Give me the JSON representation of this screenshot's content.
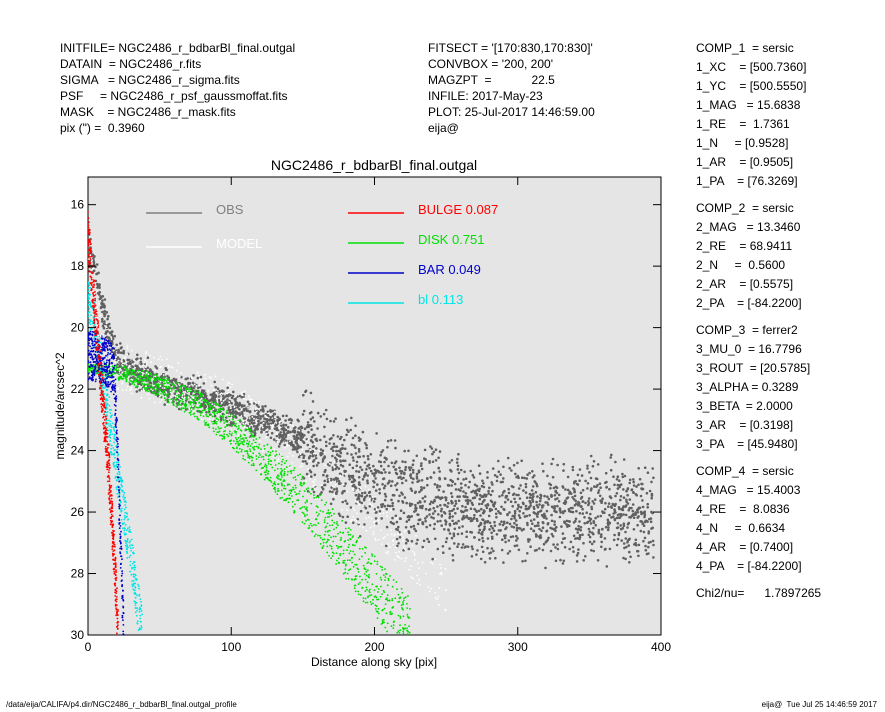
{
  "header_left": [
    "INITFILE= NGC2486_r_bdbarBl_final.outgal",
    "DATAIN  = NGC2486_r.fits",
    "SIGMA   = NGC2486_r_sigma.fits",
    "PSF     = NGC2486_r_psf_gaussmoffat.fits",
    "MASK    = NGC2486_r_mask.fits",
    "pix (\") =  0.3960"
  ],
  "header_mid": [
    "FITSECT = '[170:830,170:830]'",
    "CONVBOX = '200, 200'",
    "MAGZPT  =            22.5",
    "INFILE: 2017-May-23",
    "PLOT: 25-Jul-2017 14:46:59.00",
    "eija@"
  ],
  "components": [
    {
      "lines": [
        "COMP_1  = sersic",
        "1_XC    = [500.7360]",
        "1_YC    = [500.5550]",
        "1_MAG   = 15.6838",
        "1_RE    =  1.7361",
        "1_N     = [0.9528]",
        "1_AR    = [0.9505]",
        "1_PA    = [76.3269]"
      ]
    },
    {
      "lines": [
        "COMP_2  = sersic",
        "2_MAG   = 13.3460",
        "2_RE    = 68.9411",
        "2_N     =  0.5600",
        "2_AR    = [0.5575]",
        "2_PA    = [-84.2200]"
      ]
    },
    {
      "lines": [
        "COMP_3  = ferrer2",
        "3_MU_0  = 16.7796",
        "3_ROUT  = [20.5785]",
        "3_ALPHA = 0.3289",
        "3_BETA  = 2.0000",
        "3_AR    = [0.3198]",
        "3_PA    = [45.9480]"
      ]
    },
    {
      "lines": [
        "COMP_4  = sersic",
        "4_MAG   = 15.4003",
        "4_RE    =  8.0836",
        "4_N     =  0.6634",
        "4_AR    = [0.7400]",
        "4_PA    = [-84.2200]"
      ]
    },
    {
      "lines": [
        "Chi2/nu=      1.7897265"
      ]
    }
  ],
  "footer": {
    "left": "/data/eija/CALIFA/p4.dir/NGC2486_r_bdbarBl_final.outgal_profile",
    "right": "eija@  Tue Jul 25 14:46:59 2017"
  },
  "chart_data": {
    "type": "scatter",
    "title": "NGC2486_r_bdbarBl_final.outgal",
    "xlabel": "Distance along sky [pix]",
    "ylabel": "magnitude/arcsec^2",
    "xlim": [
      0,
      400
    ],
    "ylim": [
      30,
      15.1
    ],
    "y_inverted": true,
    "x_ticks": [
      0,
      100,
      200,
      300,
      400
    ],
    "y_ticks": [
      16,
      18,
      20,
      22,
      24,
      26,
      28,
      30
    ],
    "background": "#e5e5e5",
    "legend": [
      {
        "label": "OBS",
        "value": "",
        "color": "#808080"
      },
      {
        "label": "MODEL",
        "value": "",
        "color": "#ffffff"
      },
      {
        "label": "BULGE",
        "value": "0.087",
        "color": "#ff0000"
      },
      {
        "label": "DISK",
        "value": "0.751",
        "color": "#00e000"
      },
      {
        "label": "BAR",
        "value": "0.049",
        "color": "#0000cc"
      },
      {
        "label": "bl",
        "value": "0.113",
        "color": "#00e5e5"
      }
    ],
    "series": [
      {
        "name": "OBS",
        "color": "#606060",
        "trend": [
          [
            0,
            17.4
          ],
          [
            5,
            18.2
          ],
          [
            10,
            19.3
          ],
          [
            15,
            20.3
          ],
          [
            20,
            21.0
          ],
          [
            30,
            21.4
          ],
          [
            50,
            21.8
          ],
          [
            75,
            22.2
          ],
          [
            100,
            22.6
          ],
          [
            125,
            23.1
          ],
          [
            150,
            23.7
          ],
          [
            175,
            24.5
          ],
          [
            200,
            25.2
          ],
          [
            225,
            25.6
          ],
          [
            250,
            25.8
          ],
          [
            300,
            26.0
          ],
          [
            350,
            26.0
          ],
          [
            395,
            26.0
          ]
        ]
      },
      {
        "name": "MODEL",
        "color": "#ffffff",
        "trend": [
          [
            0,
            17.2
          ],
          [
            5,
            19.2
          ],
          [
            10,
            20.4
          ],
          [
            20,
            21.2
          ],
          [
            30,
            21.4
          ],
          [
            50,
            21.7
          ],
          [
            75,
            22.1
          ],
          [
            100,
            22.6
          ],
          [
            125,
            23.3
          ],
          [
            150,
            24.2
          ],
          [
            175,
            25.2
          ],
          [
            200,
            26.2
          ],
          [
            225,
            27.3
          ],
          [
            250,
            28.5
          ]
        ]
      },
      {
        "name": "BULGE",
        "color": "#ff0000",
        "trend": [
          [
            0,
            17.0
          ],
          [
            5,
            19.5
          ],
          [
            10,
            22.2
          ],
          [
            15,
            25.0
          ],
          [
            19,
            28.0
          ],
          [
            21,
            30.0
          ]
        ]
      },
      {
        "name": "DISK",
        "color": "#00e000",
        "trend": [
          [
            0,
            21.3
          ],
          [
            25,
            21.5
          ],
          [
            50,
            21.9
          ],
          [
            75,
            22.5
          ],
          [
            100,
            23.3
          ],
          [
            125,
            24.4
          ],
          [
            150,
            25.6
          ],
          [
            175,
            27.0
          ],
          [
            200,
            28.4
          ],
          [
            225,
            29.9
          ]
        ]
      },
      {
        "name": "BAR",
        "color": "#0000cc",
        "trend": [
          [
            0,
            20.9
          ],
          [
            10,
            21.0
          ],
          [
            18,
            21.4
          ],
          [
            20,
            23.0
          ],
          [
            22,
            26.0
          ],
          [
            25,
            30.0
          ]
        ]
      },
      {
        "name": "bl",
        "color": "#00e5e5",
        "trend": [
          [
            0,
            19.2
          ],
          [
            5,
            20.0
          ],
          [
            10,
            21.6
          ],
          [
            20,
            24.5
          ],
          [
            30,
            27.5
          ],
          [
            38,
            30.0
          ]
        ]
      }
    ]
  }
}
